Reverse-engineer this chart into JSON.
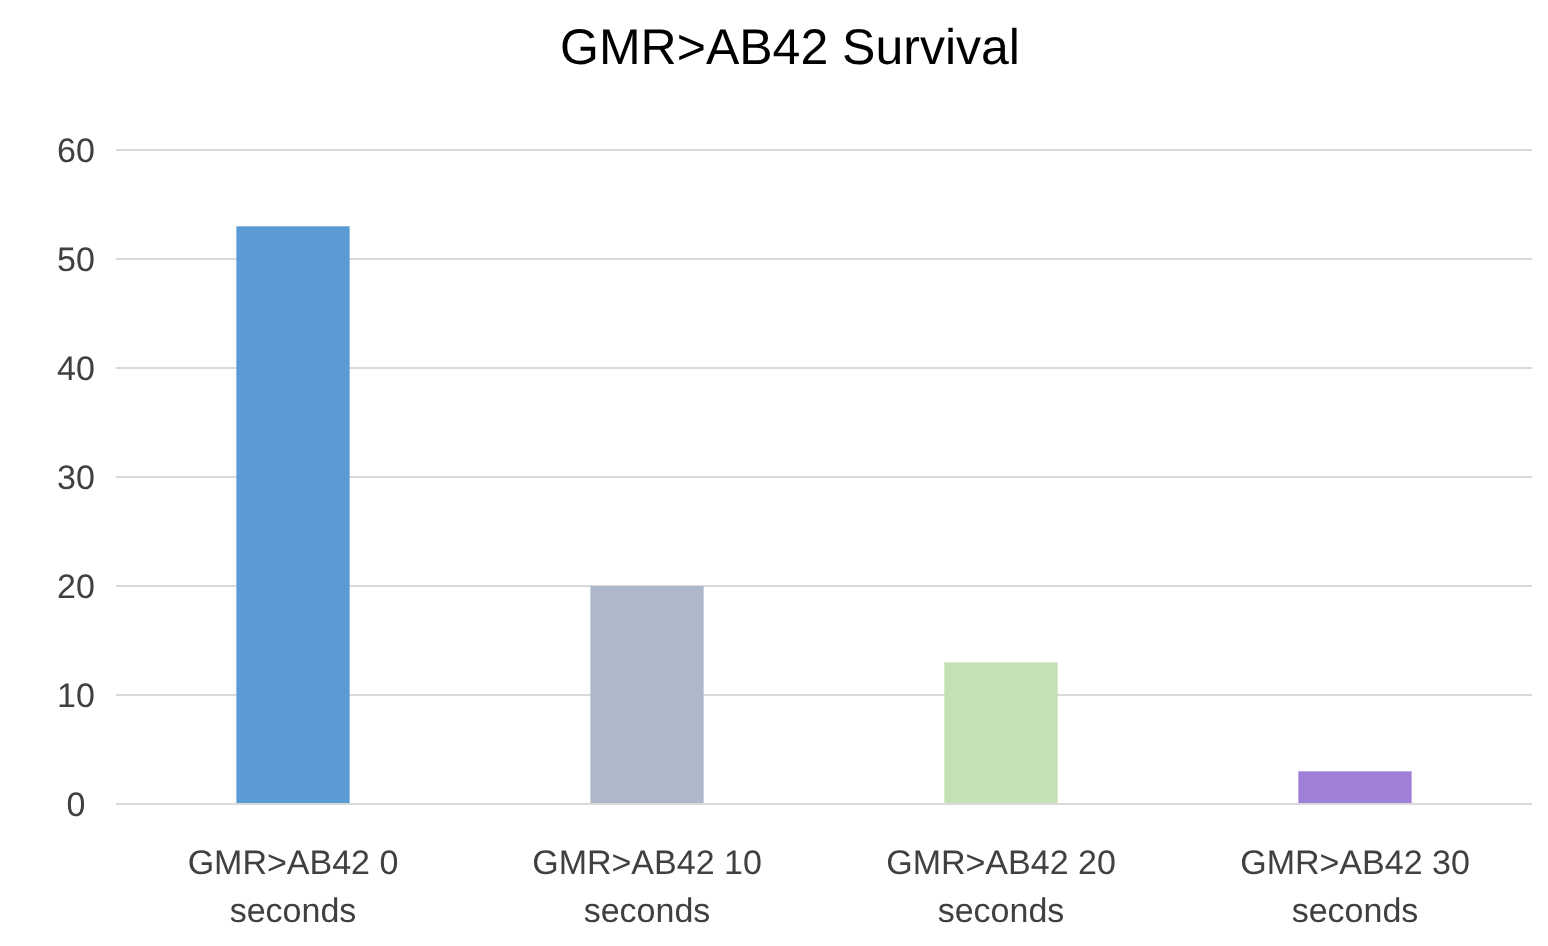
{
  "chart_data": {
    "type": "bar",
    "title": "GMR>AB42 Survival",
    "categories": [
      "GMR>AB42 0 seconds",
      "GMR>AB42 10 seconds",
      "GMR>AB42 20 seconds",
      "GMR>AB42 30 seconds"
    ],
    "values": [
      53,
      20,
      13,
      3
    ],
    "colors": [
      "#5b9bd5",
      "#adb9ca",
      "#c5e0b4",
      "#9e80d9"
    ],
    "ylim": [
      0,
      60
    ],
    "yticks": [
      0,
      10,
      20,
      30,
      40,
      50,
      60
    ],
    "grid": "y"
  }
}
